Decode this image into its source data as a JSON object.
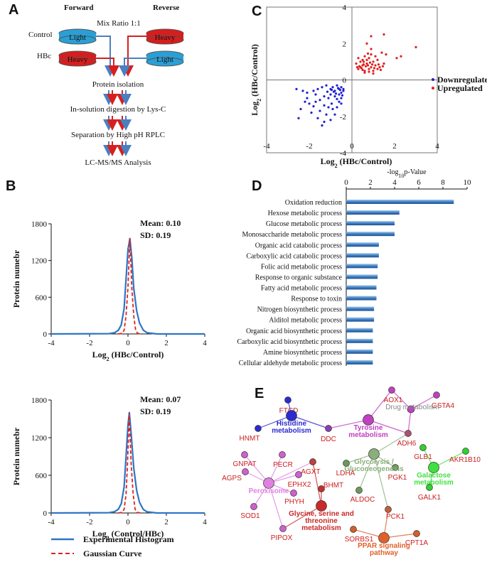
{
  "panel_a": {
    "letter": "A",
    "forward": "Forward",
    "reverse": "Reverse",
    "mix": "Mix Ratio 1:1",
    "control": "Control",
    "hbc": "HBc",
    "light": "Light",
    "heavy": "Heavy",
    "steps": [
      "Protein isolation",
      "In-solution digestion by Lys-C",
      "Separation by High pH RPLC",
      "LC-MS/MS Analysis"
    ],
    "colors": {
      "light": "#2a9fd6",
      "heavy": "#d61e1e",
      "blue": "#4a7fc1",
      "red": "#d62020"
    }
  },
  "panel_b": {
    "letter": "B",
    "legend": {
      "experimental": "Experimental Histogram",
      "gaussian": "Gaussian Curve"
    }
  },
  "panel_c": {
    "letter": "C"
  },
  "panel_d": {
    "letter": "D"
  },
  "panel_e": {
    "letter": "E"
  },
  "chart_data": [
    {
      "id": "hist1",
      "type": "line",
      "title": "",
      "xlabel": "Log2 (HBc/Control)",
      "xlabel_main": "Log",
      "xlabel_sub": "2",
      "xlabel_rest": " (HBc/Control)",
      "ylabel": "Protein numebr",
      "xlim": [
        -4,
        4
      ],
      "ylim": [
        0,
        1800
      ],
      "xticks": [
        -4,
        -2,
        0,
        2,
        4
      ],
      "yticks": [
        0,
        600,
        1200,
        1800
      ],
      "mean_label": "Mean:  0.10",
      "sd_label": "SD:  0.19",
      "mean": 0.1,
      "sd": 0.19,
      "peak": 1560,
      "series": [
        {
          "name": "Experimental Histogram",
          "x": [
            -4,
            -1.0,
            -0.7,
            -0.5,
            -0.35,
            -0.2,
            -0.1,
            0.0,
            0.1,
            0.2,
            0.3,
            0.45,
            0.6,
            0.8,
            1.0,
            1.5,
            4
          ],
          "y": [
            0,
            5,
            20,
            60,
            150,
            420,
            900,
            1380,
            1560,
            1250,
            750,
            380,
            180,
            60,
            20,
            0,
            0
          ]
        },
        {
          "name": "Gaussian Curve",
          "x": [
            -0.5,
            -0.3,
            -0.2,
            -0.1,
            0.0,
            0.05,
            0.1,
            0.15,
            0.2,
            0.3,
            0.4,
            0.5,
            0.7
          ],
          "y": [
            0,
            10,
            60,
            300,
            760,
            1150,
            1560,
            1150,
            760,
            300,
            60,
            10,
            0
          ]
        }
      ]
    },
    {
      "id": "hist2",
      "type": "line",
      "title": "",
      "xlabel": "Log2 (Control/HBc)",
      "xlabel_main": "Log",
      "xlabel_sub": "2",
      "xlabel_rest": " (Control/HBc)",
      "ylabel": "Protein numebr",
      "xlim": [
        -4,
        4
      ],
      "ylim": [
        0,
        1800
      ],
      "xticks": [
        -4,
        -2,
        0,
        2,
        4
      ],
      "yticks": [
        0,
        600,
        1200,
        1800
      ],
      "mean_label": "Mean:  0.07",
      "sd_label": "SD:  0.19",
      "mean": 0.07,
      "sd": 0.19,
      "peak": 1600,
      "series": [
        {
          "name": "Experimental Histogram",
          "x": [
            -4,
            -1.0,
            -0.7,
            -0.5,
            -0.35,
            -0.2,
            -0.1,
            0.0,
            0.07,
            0.17,
            0.3,
            0.45,
            0.6,
            0.8,
            1.0,
            1.5,
            4
          ],
          "y": [
            0,
            5,
            20,
            60,
            150,
            420,
            900,
            1400,
            1600,
            1250,
            720,
            360,
            170,
            55,
            18,
            0,
            0
          ]
        },
        {
          "name": "Gaussian Curve",
          "x": [
            -0.5,
            -0.3,
            -0.2,
            -0.1,
            -0.03,
            0.02,
            0.07,
            0.12,
            0.17,
            0.27,
            0.37,
            0.47,
            0.67
          ],
          "y": [
            0,
            10,
            60,
            300,
            760,
            1150,
            1600,
            1150,
            760,
            300,
            60,
            10,
            0
          ]
        }
      ]
    },
    {
      "id": "scatter",
      "type": "scatter",
      "title": "",
      "xlabel": "Log2 (HBc/Control)",
      "xlabel_main": "Log",
      "xlabel_sub": "2",
      "xlabel_rest": " (HBc/Control)",
      "ylabel": "Log2 (HBc/Control)",
      "xlim": [
        -4,
        4
      ],
      "ylim": [
        -4,
        4
      ],
      "xticks": [
        -4,
        -2,
        0,
        2,
        4
      ],
      "yticks": [
        -4,
        -2,
        0,
        2,
        4
      ],
      "legend": [
        "Downregulated",
        "Upregulated"
      ],
      "series": [
        {
          "name": "Downregulated",
          "color": "#1f1fd6",
          "points": [
            [
              -2.6,
              -0.5
            ],
            [
              -2.3,
              -0.6
            ],
            [
              -2.1,
              -0.7
            ],
            [
              -1.8,
              -0.6
            ],
            [
              -1.6,
              -0.5
            ],
            [
              -1.4,
              -0.4
            ],
            [
              -1.2,
              -0.3
            ],
            [
              -1.0,
              -0.5
            ],
            [
              -0.9,
              -0.4
            ],
            [
              -0.8,
              -0.6
            ],
            [
              -0.7,
              -0.3
            ],
            [
              -0.6,
              -0.5
            ],
            [
              -0.5,
              -0.4
            ],
            [
              -0.5,
              -0.7
            ],
            [
              -0.4,
              -0.6
            ],
            [
              -0.6,
              -0.8
            ],
            [
              -0.8,
              -0.9
            ],
            [
              -1.0,
              -0.8
            ],
            [
              -1.1,
              -1.0
            ],
            [
              -1.3,
              -0.9
            ],
            [
              -1.5,
              -1.1
            ],
            [
              -1.7,
              -1.2
            ],
            [
              -2.0,
              -1.3
            ],
            [
              -2.2,
              -1.2
            ],
            [
              -2.4,
              -1.6
            ],
            [
              -1.9,
              -1.8
            ],
            [
              -1.6,
              -2.1
            ],
            [
              -1.3,
              -2.3
            ],
            [
              -1.0,
              -2.2
            ],
            [
              -0.8,
              -1.9
            ],
            [
              -0.7,
              -1.5
            ],
            [
              -0.6,
              -1.2
            ],
            [
              -0.5,
              -1.0
            ],
            [
              -0.45,
              -0.85
            ],
            [
              -0.55,
              -0.55
            ],
            [
              -0.65,
              -0.45
            ],
            [
              -0.75,
              -0.75
            ],
            [
              -0.85,
              -0.65
            ],
            [
              -0.95,
              -1.3
            ],
            [
              -1.1,
              -1.5
            ],
            [
              -1.3,
              -1.4
            ],
            [
              -1.5,
              -1.7
            ],
            [
              -1.2,
              -1.9
            ],
            [
              -0.9,
              -1.6
            ],
            [
              -2.5,
              -2.1
            ],
            [
              -1.4,
              -2.5
            ],
            [
              -1.7,
              -0.8
            ],
            [
              -2.1,
              -1.0
            ],
            [
              -0.4,
              -0.5
            ],
            [
              -0.7,
              -1.05
            ],
            [
              -0.95,
              -0.55
            ],
            [
              -1.15,
              -0.65
            ],
            [
              -0.5,
              -1.3
            ],
            [
              -1.8,
              -1.45
            ]
          ]
        },
        {
          "name": "Upregulated",
          "color": "#e01f1f",
          "points": [
            [
              0.2,
              0.9
            ],
            [
              0.3,
              0.6
            ],
            [
              0.4,
              0.7
            ],
            [
              0.5,
              0.8
            ],
            [
              0.6,
              0.5
            ],
            [
              0.7,
              0.9
            ],
            [
              0.8,
              0.6
            ],
            [
              0.9,
              0.7
            ],
            [
              1.0,
              0.5
            ],
            [
              1.1,
              0.8
            ],
            [
              1.2,
              0.6
            ],
            [
              1.3,
              0.7
            ],
            [
              1.5,
              0.9
            ],
            [
              0.4,
              1.0
            ],
            [
              0.5,
              1.1
            ],
            [
              0.6,
              1.3
            ],
            [
              0.7,
              1.1
            ],
            [
              0.8,
              1.2
            ],
            [
              0.9,
              1.4
            ],
            [
              1.0,
              1.0
            ],
            [
              1.2,
              1.1
            ],
            [
              0.3,
              1.2
            ],
            [
              0.6,
              0.4
            ],
            [
              0.8,
              0.45
            ],
            [
              1.0,
              0.35
            ],
            [
              0.5,
              0.55
            ],
            [
              1.1,
              1.3
            ],
            [
              0.9,
              1.7
            ],
            [
              0.7,
              2.0
            ],
            [
              1.4,
              1.5
            ],
            [
              1.6,
              1.4
            ],
            [
              2.1,
              1.2
            ],
            [
              2.3,
              1.3
            ],
            [
              1.5,
              2.5
            ],
            [
              0.9,
              2.4
            ],
            [
              3.0,
              1.8
            ],
            [
              0.35,
              0.75
            ],
            [
              0.45,
              0.65
            ],
            [
              0.55,
              0.85
            ],
            [
              0.65,
              0.75
            ],
            [
              0.75,
              0.8
            ],
            [
              0.85,
              0.95
            ],
            [
              0.95,
              0.85
            ],
            [
              1.05,
              0.65
            ],
            [
              1.25,
              0.85
            ],
            [
              1.35,
              0.55
            ],
            [
              1.45,
              0.75
            ],
            [
              0.25,
              0.7
            ],
            [
              0.55,
              1.0
            ],
            [
              0.75,
              1.45
            ]
          ]
        }
      ]
    },
    {
      "id": "go_bar",
      "type": "bar",
      "title": "-log10p-Value",
      "title_main": "-log",
      "title_sub": "10",
      "title_rest": "p-Value",
      "xlim": [
        0,
        10
      ],
      "xticks": [
        0,
        2,
        4,
        6,
        8,
        10
      ],
      "categories": [
        "Oxidation reduction",
        "Hexose metabolic process",
        "Glucose metabolic process",
        "Monosaccharide metabolic process",
        "Organic acid catabolic process",
        "Carboxylic acid catabolic process",
        "Folic acid  metabolic process",
        "Response to organic substance",
        "Fatty acid metabolic process",
        "Response to toxin",
        "Nitrogen biosynthetic process",
        "Alditol metabolic process",
        "Organic acid biosynthetic process",
        "Carboxylic acid biosynthetic process",
        "Amine biosynthetic process",
        "Cellular aldehyde metabolic process"
      ],
      "values": [
        8.9,
        4.4,
        4.0,
        4.0,
        2.7,
        2.7,
        2.6,
        2.6,
        2.5,
        2.5,
        2.3,
        2.3,
        2.2,
        2.2,
        2.2,
        2.2
      ]
    }
  ],
  "network": {
    "nodes": [
      {
        "id": "FTCD",
        "label": "FTCD",
        "color": "#2b2bd0",
        "text": "#cc2020"
      },
      {
        "id": "HNMT",
        "label": "HNMT",
        "color": "#2b2bd0",
        "text": "#cc2020"
      },
      {
        "id": "DDC",
        "label": "DDC",
        "color": "#8a3fb5",
        "text": "#cc2020"
      },
      {
        "id": "HIS",
        "label": "Histidine metabolism",
        "lines": [
          "Histidine",
          "metabolism"
        ],
        "color": "#2b2bd0",
        "text": "#2b2bd0",
        "hub": true
      },
      {
        "id": "AOX1",
        "label": "AOX1",
        "color": "#c040c0",
        "text": "#cc2020"
      },
      {
        "id": "GSTA4",
        "label": "GSTA4",
        "color": "#c040c0",
        "text": "#cc2020"
      },
      {
        "id": "DRUG",
        "label": "Drug metabolism",
        "lines": [
          "Drug metabolism"
        ],
        "color": "#c040c0",
        "text": "#888888",
        "hub": true,
        "small": true
      },
      {
        "id": "TYR",
        "label": "Tyrosine metabolism",
        "lines": [
          "Tyrosine",
          "metabolism"
        ],
        "color": "#c040c0",
        "text": "#c040c0",
        "hub": true
      },
      {
        "id": "ADH6",
        "label": "ADH6",
        "color": "#b05070",
        "text": "#cc2020"
      },
      {
        "id": "GNPAT",
        "label": "GNPAT",
        "color": "#d060d0",
        "text": "#cc2020"
      },
      {
        "id": "PECR",
        "label": "PECR",
        "color": "#d060d0",
        "text": "#cc2020"
      },
      {
        "id": "AGXT",
        "label": "AGXT",
        "color": "#c04040",
        "text": "#cc2020"
      },
      {
        "id": "AGPS",
        "label": "AGPS",
        "color": "#d060d0",
        "text": "#cc2020"
      },
      {
        "id": "EPHX2",
        "label": "EPHX2",
        "color": "#d060d0",
        "text": "#cc2020"
      },
      {
        "id": "PHYH",
        "label": "PHYH",
        "color": "#d060d0",
        "text": "#cc2020"
      },
      {
        "id": "BHMT",
        "label": "BHMT",
        "color": "#c03030",
        "text": "#cc2020"
      },
      {
        "id": "PER",
        "label": "Peroxisome",
        "lines": [
          "Peroxisome"
        ],
        "color": "#e080e0",
        "text": "#e080e0",
        "hub": true
      },
      {
        "id": "SOD1",
        "label": "SOD1",
        "color": "#d060d0",
        "text": "#cc2020"
      },
      {
        "id": "PIPOX",
        "label": "PIPOX",
        "color": "#d060d0",
        "text": "#cc2020"
      },
      {
        "id": "GLY",
        "label": "Glycine, serine and threonine metabolism",
        "lines": [
          "Glycine, serine and",
          "threonine",
          "metabolism"
        ],
        "color": "#c82a2a",
        "text": "#c82a2a",
        "hub": true
      },
      {
        "id": "LDHA",
        "label": "LDHA",
        "color": "#6a9a5a",
        "text": "#cc2020"
      },
      {
        "id": "PGK1",
        "label": "PGK1",
        "color": "#6a9a5a",
        "text": "#cc2020"
      },
      {
        "id": "GLYC",
        "label": "Glycolysis / Gluconeogenesis",
        "lines": [
          "Glycolysis /",
          "Gluconeogenesis"
        ],
        "color": "#8aaf7a",
        "text": "#8aaf7a",
        "hub": true
      },
      {
        "id": "ALDOC",
        "label": "ALDOC",
        "color": "#6a9a5a",
        "text": "#cc2020"
      },
      {
        "id": "PCK1",
        "label": "PCK1",
        "color": "#c0603a",
        "text": "#cc2020"
      },
      {
        "id": "GLB1",
        "label": "GLB1",
        "color": "#30d030",
        "text": "#cc2020"
      },
      {
        "id": "AKR1B10",
        "label": "AKR1B10",
        "color": "#30d030",
        "text": "#cc2020"
      },
      {
        "id": "GAL",
        "label": "Galactose metabolism",
        "lines": [
          "Galactose",
          "metabolism"
        ],
        "color": "#40e040",
        "text": "#40e040",
        "hub": true
      },
      {
        "id": "GALK1",
        "label": "GALK1",
        "color": "#30d030",
        "text": "#cc2020"
      },
      {
        "id": "SORBS1",
        "label": "SORBS1",
        "color": "#d0602a",
        "text": "#cc2020"
      },
      {
        "id": "CPT1A",
        "label": "CPT1A",
        "color": "#d0602a",
        "text": "#cc2020"
      },
      {
        "id": "PPAR",
        "label": "PPAR signaling pathway",
        "lines": [
          "PPAR signaling",
          "pathway"
        ],
        "color": "#e0602a",
        "text": "#e0602a",
        "hub": true
      }
    ],
    "edges": [
      [
        "FTCD",
        "HIS"
      ],
      [
        "HNMT",
        "HIS"
      ],
      [
        "DDC",
        "HIS"
      ],
      [
        "DDC",
        "TYR"
      ],
      [
        "AOX1",
        "TYR"
      ],
      [
        "AOX1",
        "DRUG"
      ],
      [
        "GSTA4",
        "DRUG"
      ],
      [
        "ADH6",
        "DRUG"
      ],
      [
        "ADH6",
        "TYR"
      ],
      [
        "ADH6",
        "GLYC"
      ],
      [
        "GNPAT",
        "PER"
      ],
      [
        "PECR",
        "PER"
      ],
      [
        "AGPS",
        "PER"
      ],
      [
        "EPHX2",
        "PER"
      ],
      [
        "PHYH",
        "PER"
      ],
      [
        "SOD1",
        "PER"
      ],
      [
        "PIPOX",
        "PER"
      ],
      [
        "AGXT",
        "PER"
      ],
      [
        "AGXT",
        "GLY"
      ],
      [
        "BHMT",
        "GLY"
      ],
      [
        "PIPOX",
        "GLY"
      ],
      [
        "LDHA",
        "GLYC"
      ],
      [
        "PGK1",
        "GLYC"
      ],
      [
        "ALDOC",
        "GLYC"
      ],
      [
        "PCK1",
        "GLYC"
      ],
      [
        "PCK1",
        "PPAR"
      ],
      [
        "SORBS1",
        "PPAR"
      ],
      [
        "CPT1A",
        "PPAR"
      ],
      [
        "GLB1",
        "GAL"
      ],
      [
        "AKR1B10",
        "GAL"
      ],
      [
        "GALK1",
        "GAL"
      ]
    ]
  }
}
